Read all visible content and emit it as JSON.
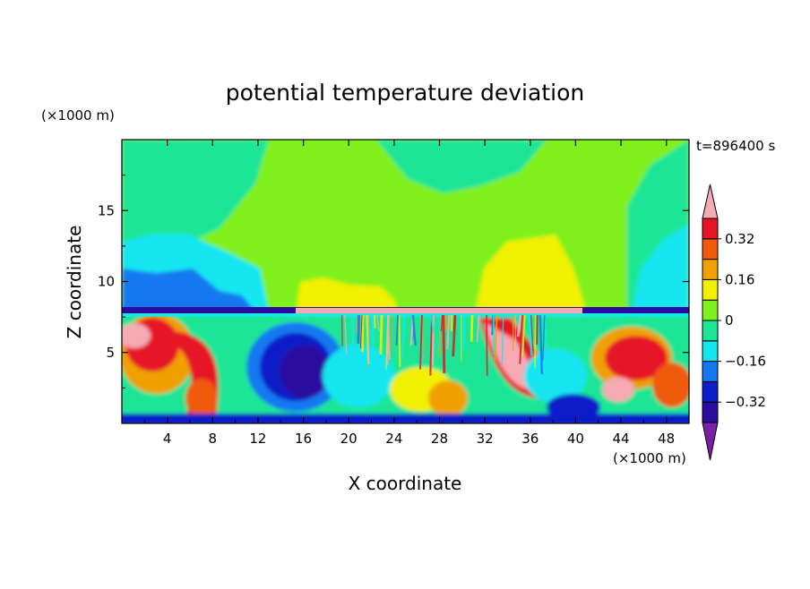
{
  "chart_data": {
    "type": "heatmap",
    "title": "potential temperature deviation",
    "xlabel": "X coordinate",
    "ylabel": "Z coordinate",
    "x_unit": "(×1000 m)",
    "y_unit": "(×1000 m)",
    "time_label": "t=896400 s",
    "xlim": [
      0,
      50
    ],
    "ylim": [
      0,
      20
    ],
    "x_ticks": [
      4,
      8,
      12,
      16,
      20,
      24,
      28,
      32,
      36,
      40,
      44,
      48
    ],
    "y_ticks": [
      5,
      10,
      15
    ],
    "colorbar": {
      "levels": [
        -0.48,
        -0.4,
        -0.32,
        -0.24,
        -0.16,
        -0.08,
        0,
        0.08,
        0.16,
        0.24,
        0.32,
        0.4
      ],
      "labels": [
        "0.32",
        "0.16",
        "0",
        "−0.16",
        "−0.32"
      ],
      "label_values": [
        0.32,
        0.16,
        0,
        -0.16,
        -0.32
      ],
      "colors": [
        "#7a1fa8",
        "#2a0da0",
        "#0a1ec8",
        "#1478f0",
        "#14e6f0",
        "#1ee696",
        "#80f01e",
        "#f0f000",
        "#f0a000",
        "#f05a0a",
        "#e61428",
        "#f5aab4"
      ]
    }
  }
}
